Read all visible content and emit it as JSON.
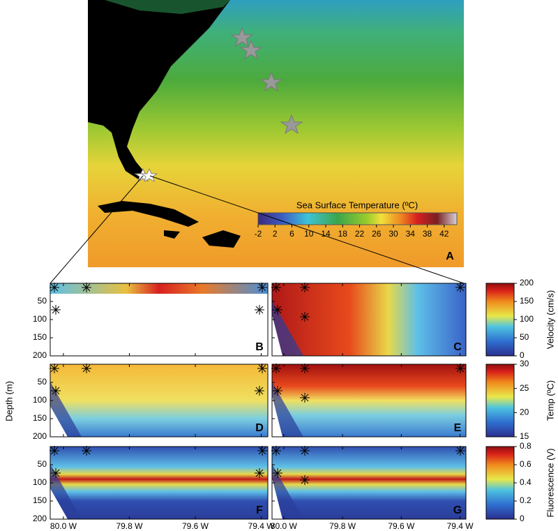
{
  "panel_a": {
    "label": "A",
    "colorbar": {
      "title": "Sea Surface Temperature  (ºC)",
      "lim": [
        -2,
        45
      ],
      "ticks": [
        -2,
        2,
        6,
        10,
        14,
        18,
        22,
        26,
        30,
        34,
        38,
        42
      ]
    }
  },
  "sections": {
    "y_label": "Depth (m)",
    "xlim": [
      80.04,
      79.38
    ],
    "xticks": [
      {
        "value": 80.0,
        "label": "80.0 W"
      },
      {
        "value": 79.8,
        "label": "79.8 W"
      },
      {
        "value": 79.6,
        "label": "79.6 W"
      },
      {
        "value": 79.4,
        "label": "79.4 W"
      }
    ],
    "ylim": [
      0,
      200
    ],
    "yticks": [
      50,
      100,
      150,
      200
    ],
    "panels": [
      {
        "label": "B"
      },
      {
        "label": "C"
      },
      {
        "label": "D"
      },
      {
        "label": "E"
      },
      {
        "label": "F"
      },
      {
        "label": "G"
      }
    ]
  },
  "colorbars": [
    {
      "title": "Velocity (cm/s)",
      "lim": [
        0,
        200
      ],
      "ticks": [
        0,
        50,
        100,
        150,
        200
      ]
    },
    {
      "title": "Temp (ºC)",
      "lim": [
        15,
        30
      ],
      "ticks": [
        15,
        20,
        25,
        30
      ]
    },
    {
      "title": "Fluorescence (V)",
      "lim": [
        0,
        0.8
      ],
      "ticks": [
        0,
        0.2,
        0.4,
        0.6,
        0.8
      ]
    }
  ]
}
